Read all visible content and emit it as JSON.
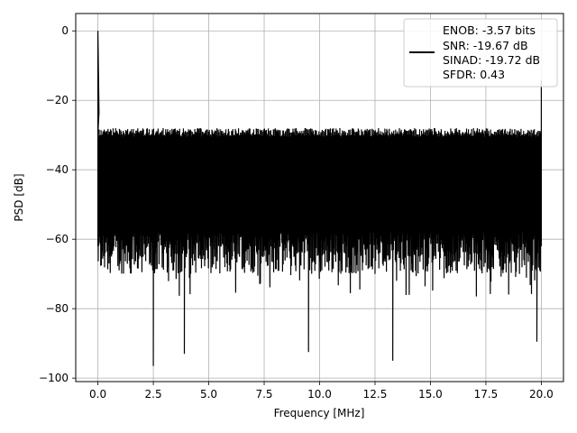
{
  "chart_data": {
    "type": "line",
    "title": "",
    "xlabel": "Frequency [MHz]",
    "ylabel": "PSD [dB]",
    "xlim": [
      -1.0,
      21.0
    ],
    "ylim": [
      -101.0,
      5.0
    ],
    "xticks": [
      0.0,
      2.5,
      5.0,
      7.5,
      10.0,
      12.5,
      15.0,
      17.5,
      20.0
    ],
    "xtick_labels": [
      "0.0",
      "2.5",
      "5.0",
      "7.5",
      "10.0",
      "12.5",
      "15.0",
      "17.5",
      "20.0"
    ],
    "yticks": [
      0,
      -20,
      -40,
      -60,
      -80,
      -100
    ],
    "ytick_labels": [
      "0",
      "−20",
      "−40",
      "−60",
      "−80",
      "−100"
    ],
    "grid": true,
    "legend_position": "top-right",
    "series": [
      {
        "color": "#000000",
        "noise_floor_band_db": [
          -70,
          -28
        ],
        "peaks": [
          {
            "x": 0.0,
            "y": 0.0
          },
          {
            "x": 0.1,
            "y": -23.5
          },
          {
            "x": 20.0,
            "y": -14.0
          }
        ],
        "notable_minima": [
          {
            "x": 2.5,
            "y": -96.5
          },
          {
            "x": 3.9,
            "y": -93.0
          },
          {
            "x": 13.3,
            "y": -95.0
          },
          {
            "x": 9.5,
            "y": -92.5
          },
          {
            "x": 19.8,
            "y": -89.5
          }
        ]
      }
    ],
    "legend_entries": [
      "ENOB: -3.57 bits",
      "SNR: -19.67 dB",
      "SINAD: -19.72 dB",
      "SFDR: 0.43"
    ]
  }
}
